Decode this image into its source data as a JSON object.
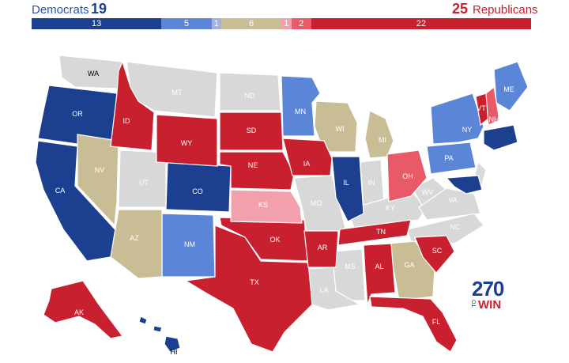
{
  "header": {
    "dem_label": "Democrats",
    "dem_count": "19",
    "rep_count": "25",
    "rep_label": "Republicans"
  },
  "segments": [
    {
      "label": "13",
      "value": 13,
      "color": "#1d3f8f"
    },
    {
      "label": "5",
      "value": 5,
      "color": "#5b85d6"
    },
    {
      "label": "1",
      "value": 1,
      "color": "#9db3e6"
    },
    {
      "label": "6",
      "value": 6,
      "color": "#c9bd96"
    },
    {
      "label": "1",
      "value": 1,
      "color": "#f2a0ac"
    },
    {
      "label": "2",
      "value": 2,
      "color": "#e85a68"
    },
    {
      "label": "22",
      "value": 22,
      "color": "#c8202f"
    }
  ],
  "legend_colors": {
    "safe_dem": "#1d3f8f",
    "likely_dem": "#5b85d6",
    "tossup": "#c9bd96",
    "leans_rep": "#e85a68",
    "likely_rep": "#f2a0ac",
    "safe_rep": "#c8202f",
    "no_race": "#d8d8d8"
  },
  "states": {
    "WA": "WA",
    "OR": "OR",
    "CA": "CA",
    "ID": "ID",
    "NV": "NV",
    "MT": "MT",
    "WY": "WY",
    "UT": "UT",
    "AZ": "AZ",
    "CO": "CO",
    "NM": "NM",
    "ND": "ND",
    "SD": "SD",
    "NE": "NE",
    "KS": "KS",
    "OK": "OK",
    "TX": "TX",
    "MN": "MN",
    "IA": "IA",
    "MO": "MO",
    "AR": "AR",
    "LA": "LA",
    "WI": "WI",
    "IL": "IL",
    "MI": "MI",
    "IN": "IN",
    "OH": "OH",
    "KY": "KY",
    "TN": "TN",
    "MS": "MS",
    "AL": "AL",
    "GA": "GA",
    "FL": "FL",
    "SC": "SC",
    "NC": "NC",
    "VA": "VA",
    "WV": "WV",
    "PA": "PA",
    "NY": "NY",
    "VT": "VT",
    "NH": "NH",
    "ME": "ME",
    "AK": "AK",
    "HI": "HI"
  },
  "logo": {
    "number": "270",
    "to": "TO",
    "win": "WIN"
  }
}
